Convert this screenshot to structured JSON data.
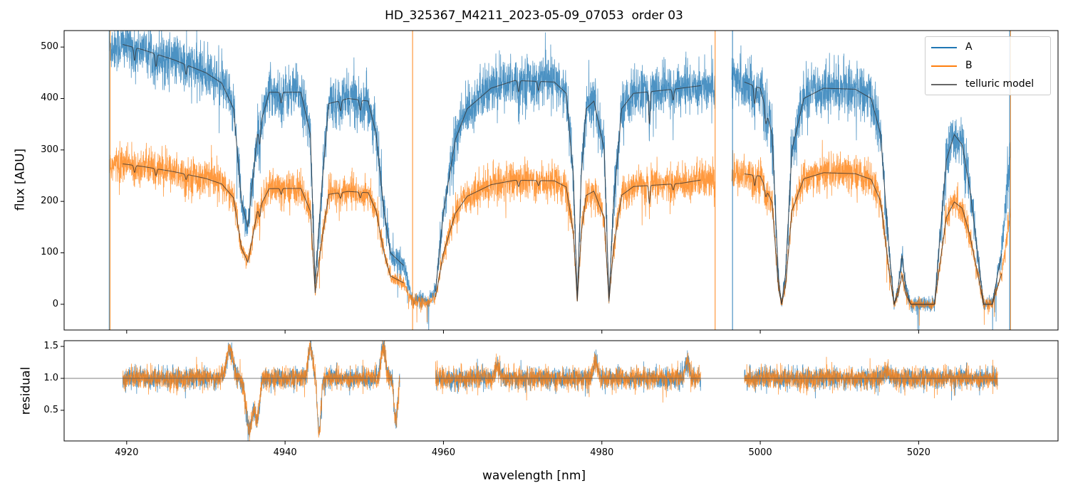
{
  "chart_data": {
    "type": "line",
    "title": "HD_325367_M4211_2023-05-09_07053  order 03",
    "xlabel": "wavelength [nm]",
    "xlim": [
      4912.1,
      5037.6
    ],
    "xticks": [
      4920,
      4940,
      4960,
      4980,
      5000,
      5020
    ],
    "legend_position": "top-right",
    "colors": {
      "A": "#1f77b4",
      "B": "#ff7f0e",
      "model": "#333333",
      "refline": "#555555"
    },
    "top_panel": {
      "ylabel": "flux [ADU]",
      "ylim": [
        -50,
        532
      ],
      "yticks": [
        0,
        100,
        200,
        300,
        400,
        500
      ],
      "legend": [
        "A",
        "B",
        "telluric model"
      ],
      "observed_segments": [
        [
          4917.8,
          4994.3
        ],
        [
          4996.4,
          5031.6
        ]
      ],
      "model_segments": [
        [
          4919.5,
          4955
        ],
        [
          4959,
          4992.5
        ],
        [
          4998,
          5030.5
        ]
      ],
      "A_continuum_anchors": [
        [
          4917.8,
          500
        ],
        [
          4919.5,
          505
        ],
        [
          4922,
          495
        ],
        [
          4926,
          475
        ],
        [
          4930,
          450
        ],
        [
          4932,
          430
        ],
        [
          4933.5,
          380
        ],
        [
          4934.5,
          200
        ],
        [
          4935.3,
          150
        ],
        [
          4936.5,
          330
        ],
        [
          4938,
          412
        ],
        [
          4942,
          412
        ],
        [
          4943.2,
          330
        ],
        [
          4943.8,
          40
        ],
        [
          4944.5,
          200
        ],
        [
          4945.5,
          390
        ],
        [
          4948,
          400
        ],
        [
          4950.5,
          395
        ],
        [
          4951.5,
          330
        ],
        [
          4952.5,
          180
        ],
        [
          4953.3,
          100
        ],
        [
          4955,
          75
        ],
        [
          4956,
          10
        ],
        [
          4958,
          5
        ],
        [
          4959,
          25
        ],
        [
          4960,
          180
        ],
        [
          4961.5,
          320
        ],
        [
          4963,
          380
        ],
        [
          4966,
          420
        ],
        [
          4969,
          435
        ],
        [
          4974,
          432
        ],
        [
          4975.5,
          410
        ],
        [
          4976.4,
          250
        ],
        [
          4976.9,
          10
        ],
        [
          4977.4,
          250
        ],
        [
          4978,
          380
        ],
        [
          4979,
          395
        ],
        [
          4980.3,
          300
        ],
        [
          4980.9,
          10
        ],
        [
          4981.5,
          200
        ],
        [
          4982.5,
          380
        ],
        [
          4984,
          410
        ],
        [
          4989,
          418
        ],
        [
          4992.5,
          425
        ],
        [
          4994.3,
          420
        ],
        [
          4996.4,
          430
        ],
        [
          4998,
          432
        ],
        [
          5000,
          420
        ],
        [
          5001.5,
          330
        ],
        [
          5002.3,
          50
        ],
        [
          5002.7,
          0
        ],
        [
          5003.2,
          60
        ],
        [
          5004,
          300
        ],
        [
          5005.5,
          400
        ],
        [
          5008,
          420
        ],
        [
          5012,
          418
        ],
        [
          5014,
          400
        ],
        [
          5015.2,
          330
        ],
        [
          5016.3,
          100
        ],
        [
          5016.9,
          0
        ],
        [
          5017.4,
          30
        ],
        [
          5017.9,
          95
        ],
        [
          5018.4,
          30
        ],
        [
          5019,
          0
        ],
        [
          5022,
          0
        ],
        [
          5022.8,
          150
        ],
        [
          5023.5,
          280
        ],
        [
          5024.5,
          330
        ],
        [
          5025.5,
          310
        ],
        [
          5026.5,
          220
        ],
        [
          5027.6,
          80
        ],
        [
          5028.2,
          0
        ],
        [
          5029.3,
          0
        ],
        [
          5030,
          60
        ],
        [
          5030.5,
          100
        ],
        [
          5031.6,
          300
        ]
      ],
      "narrow_lines": [
        [
          4921,
          0.05,
          0.15
        ],
        [
          4923.7,
          0.05,
          0.15
        ],
        [
          4927.5,
          0.04,
          0.15
        ],
        [
          4936.8,
          0.1,
          0.15
        ],
        [
          4939.5,
          0.05,
          0.15
        ],
        [
          4947,
          0.05,
          0.15
        ],
        [
          4949.5,
          0.05,
          0.15
        ],
        [
          4969.5,
          0.05,
          0.15
        ],
        [
          4972,
          0.04,
          0.15
        ],
        [
          4986,
          0.15,
          0.12
        ],
        [
          4989,
          0.05,
          0.15
        ],
        [
          4999.3,
          0.08,
          0.15
        ],
        [
          5000.7,
          0.07,
          0.15
        ]
      ],
      "B_to_A_ratio": [
        [
          4917.8,
          0.54
        ],
        [
          4990,
          0.56
        ],
        [
          5005,
          0.61
        ],
        [
          5031.6,
          0.6
        ]
      ],
      "noise_sd": {
        "A": 25,
        "B": 18
      }
    },
    "bottom_panel": {
      "ylabel": "residual",
      "ylim": [
        0.02,
        1.59
      ],
      "yticks": [
        0.5,
        1.0,
        1.5
      ],
      "reference_line": 1.0,
      "segments": [
        [
          4919.5,
          4954.5
        ],
        [
          4959,
          4992.5
        ],
        [
          4998,
          5030
        ]
      ],
      "features": [
        [
          4933,
          0.45,
          0.6
        ],
        [
          4935.5,
          -0.8,
          0.6
        ],
        [
          4936.5,
          -0.6,
          0.4
        ],
        [
          4943.2,
          0.5,
          0.4
        ],
        [
          4944.3,
          -0.9,
          0.3
        ],
        [
          4952.4,
          0.5,
          0.4
        ],
        [
          4954,
          -0.7,
          0.3
        ],
        [
          4966.8,
          0.2,
          0.4
        ],
        [
          4979.2,
          0.25,
          0.4
        ],
        [
          4990.8,
          0.25,
          0.4
        ],
        [
          5016,
          0.1,
          0.5
        ]
      ],
      "noise_sd": 0.08
    }
  }
}
